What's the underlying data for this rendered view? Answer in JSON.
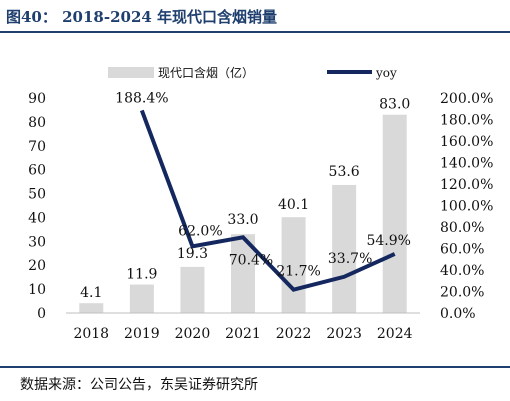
{
  "header": {
    "title": "图40：  2018-2024 年现代口含烟销量"
  },
  "footer": {
    "source": "数据来源：公司公告，东吴证券研究所"
  },
  "colors": {
    "bar": "#d9d9d9",
    "line": "#14285f",
    "rule": "#1f3f6e",
    "text": "#111111"
  },
  "chart_data": {
    "type": "bar",
    "title": "",
    "categories": [
      "2018",
      "2019",
      "2020",
      "2021",
      "2022",
      "2023",
      "2024"
    ],
    "series": [
      {
        "name": "现代口含烟（亿）",
        "type": "bar",
        "axis": "left",
        "values": [
          4.1,
          11.9,
          19.3,
          33.0,
          40.1,
          53.6,
          83.0
        ],
        "labels": [
          "4.1",
          "11.9",
          "19.3",
          "33.0",
          "40.1",
          "53.6",
          "83.0"
        ]
      },
      {
        "name": "yoy",
        "type": "line",
        "axis": "right",
        "values": [
          null,
          188.4,
          62.0,
          70.4,
          21.7,
          33.7,
          54.9
        ],
        "labels": [
          "",
          "188.4%",
          "62.0%",
          "70.4%",
          "21.7%",
          "33.7%",
          "54.9%"
        ]
      }
    ],
    "y_left": {
      "range": [
        0,
        90
      ],
      "ticks": [
        "0",
        "10",
        "20",
        "30",
        "40",
        "50",
        "60",
        "70",
        "80",
        "90"
      ]
    },
    "y_right": {
      "range": [
        0,
        200
      ],
      "ticks": [
        "0.0%",
        "20.0%",
        "40.0%",
        "60.0%",
        "80.0%",
        "100.0%",
        "120.0%",
        "140.0%",
        "160.0%",
        "180.0%",
        "200.0%"
      ]
    },
    "legend": "top-center",
    "grid": false
  }
}
